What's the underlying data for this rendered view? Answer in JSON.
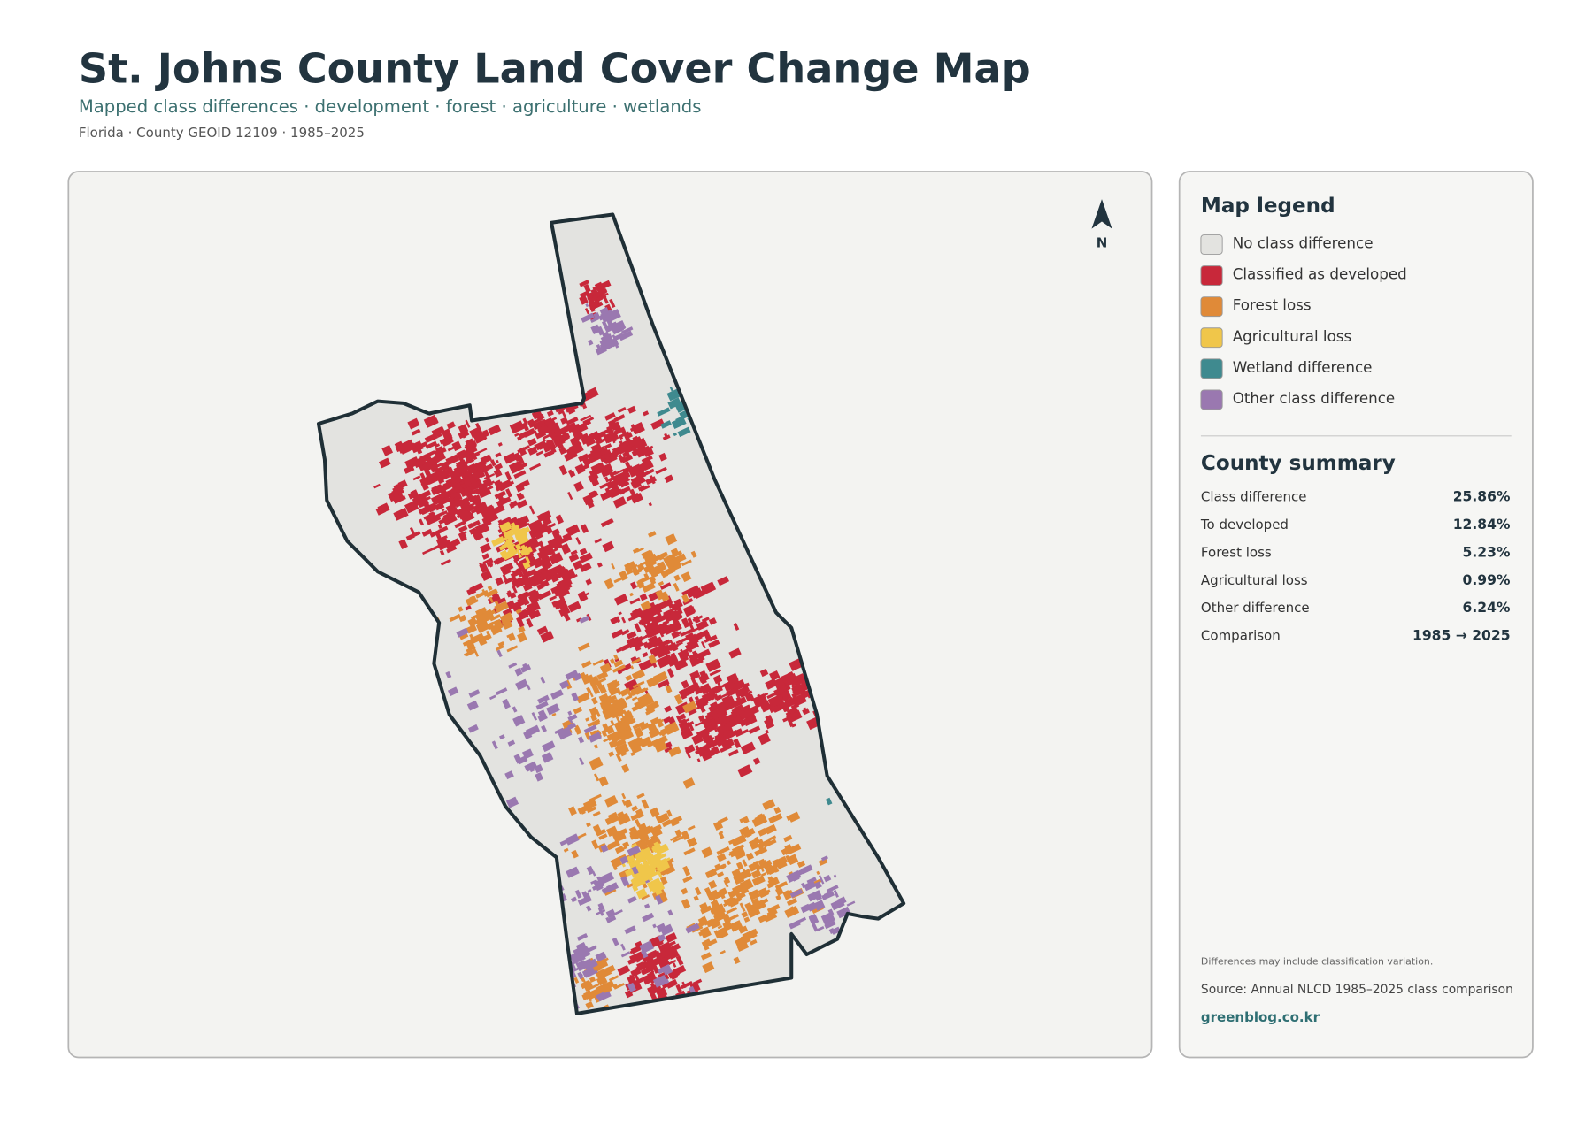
{
  "header": {
    "title": "St. Johns County Land Cover Change Map",
    "subtitle": "Mapped class differences · development · forest · agriculture · wetlands",
    "meta": "Florida · County GEOID 12109 · 1985–2025"
  },
  "north_label": "N",
  "legend": {
    "title": "Map legend",
    "items": [
      {
        "label": "No class difference",
        "color": "#e3e3e0"
      },
      {
        "label": "Classified as developed",
        "color": "#c8283a"
      },
      {
        "label": "Forest loss",
        "color": "#e08a38"
      },
      {
        "label": "Agricultural loss",
        "color": "#f0c64a"
      },
      {
        "label": "Wetland difference",
        "color": "#3f8a8f"
      },
      {
        "label": "Other class difference",
        "color": "#9a78b0"
      }
    ]
  },
  "summary": {
    "title": "County summary",
    "rows": [
      {
        "label": "Class difference",
        "value": "25.86%"
      },
      {
        "label": "To developed",
        "value": "12.84%"
      },
      {
        "label": "Forest loss",
        "value": "5.23%"
      },
      {
        "label": "Agricultural loss",
        "value": "0.99%"
      },
      {
        "label": "Other difference",
        "value": "6.24%"
      },
      {
        "label": "Comparison",
        "value": "1985 → 2025"
      }
    ]
  },
  "footer": {
    "note": "Differences may include classification variation.",
    "source": "Source: Annual NLCD 1985–2025 class comparison",
    "site": "greenblog.co.kr"
  }
}
